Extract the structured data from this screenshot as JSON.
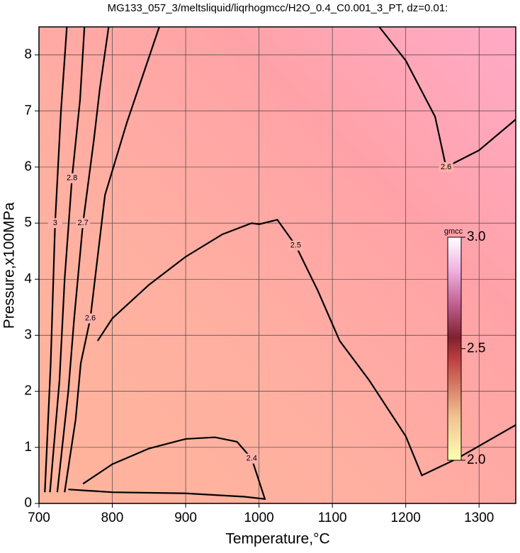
{
  "chart_data": {
    "type": "contour",
    "title": "MG133_057_3/meltsliquid/liqrhogmcc/H2O_0.4_C0.001_3_PT, dz=0.01:",
    "x_label": "Temperature,°C",
    "y_label": "Pressure,x100MPa",
    "xlim": [
      700,
      1350
    ],
    "ylim": [
      0,
      8.5
    ],
    "xticks": [
      700,
      800,
      900,
      1000,
      1100,
      1200,
      1300
    ],
    "yticks": [
      0,
      1,
      2,
      3,
      4,
      5,
      6,
      7,
      8
    ],
    "grid": true,
    "contours": [
      {
        "level": 2.4,
        "x": [
          760,
          800,
          850,
          900,
          940,
          970,
          990,
          1000,
          1008,
          980,
          900,
          800,
          740
        ],
        "y": [
          0.35,
          0.7,
          0.98,
          1.15,
          1.18,
          1.1,
          0.8,
          0.4,
          0.08,
          0.12,
          0.18,
          0.2,
          0.25
        ]
      },
      {
        "level": 2.5,
        "x": [
          780,
          800,
          850,
          900,
          950,
          990,
          1000,
          1025,
          1050,
          1080,
          1110,
          1150,
          1200,
          1222,
          1270,
          1350
        ],
        "y": [
          2.9,
          3.3,
          3.9,
          4.4,
          4.8,
          5.0,
          4.98,
          5.06,
          4.6,
          3.8,
          2.9,
          2.2,
          1.2,
          0.5,
          0.8,
          1.4
        ]
      },
      {
        "level": 2.6,
        "x": [
          1164,
          1200,
          1240,
          1255,
          1300,
          1350
        ],
        "y": [
          8.5,
          7.9,
          6.9,
          6.0,
          6.3,
          6.85
        ]
      },
      {
        "level": 2.6,
        "x": [
          735,
          750,
          757,
          770,
          790,
          820,
          864
        ],
        "y": [
          0.2,
          1.5,
          2.5,
          3.3,
          5.5,
          6.8,
          8.5
        ]
      },
      {
        "level": 2.7,
        "x": [
          725,
          740,
          748,
          760,
          775,
          783,
          795
        ],
        "y": [
          0.2,
          2.0,
          3.3,
          5.0,
          6.5,
          7.4,
          8.5
        ]
      },
      {
        "level": 2.8,
        "x": [
          715,
          728,
          735,
          745,
          756,
          762
        ],
        "y": [
          0.2,
          2.2,
          4.0,
          5.8,
          7.2,
          8.5
        ]
      },
      {
        "level": 3,
        "x": [
          708,
          716,
          722,
          730,
          738
        ],
        "y": [
          0.2,
          2.5,
          5.0,
          7.0,
          8.5
        ]
      }
    ],
    "colorbar": {
      "title": "gmcc",
      "clim": [
        2.0,
        3.0
      ],
      "ticks": [
        {
          "value": 2.0,
          "label": "2.0"
        },
        {
          "value": 2.5,
          "label": "2.5"
        },
        {
          "value": 3.0,
          "label": "3.0"
        }
      ]
    }
  }
}
